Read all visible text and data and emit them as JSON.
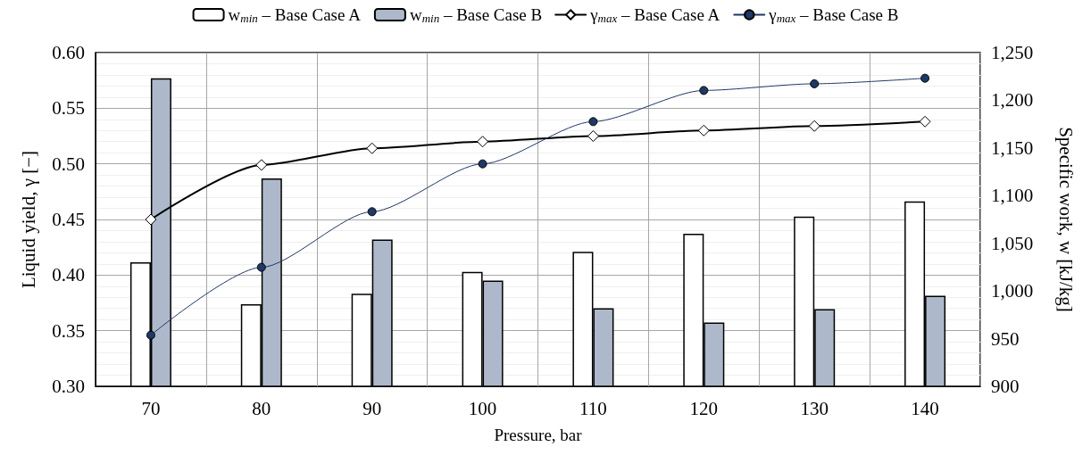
{
  "chart_data": {
    "type": "bar",
    "xlabel": "Pressure, bar",
    "ylabel": "Liquid yield, γ [−]",
    "y2label": "Specific work, w [kJ/kg]",
    "categories": [
      "70",
      "80",
      "90",
      "100",
      "110",
      "120",
      "130",
      "140"
    ],
    "series": [
      {
        "name": "w$_{min}$ – Base Case A",
        "axis": "y2",
        "color": "#ffffff",
        "values": [
          1030,
          986,
          997,
          1020,
          1041,
          1060,
          1078,
          1094
        ]
      },
      {
        "name": "w$_{min}$ – Base Case B",
        "axis": "y2",
        "color": "#adb9ca",
        "values": [
          1223,
          1118,
          1054,
          1011,
          982,
          967,
          981,
          995
        ]
      },
      {
        "name": "γ$_{max}$ – Base Case A",
        "type": "line",
        "marker": "diamond",
        "color": "#000000",
        "values": [
          0.45,
          0.499,
          0.514,
          0.52,
          0.525,
          0.53,
          0.534,
          0.538
        ]
      },
      {
        "name": "γ$_{max}$ – Base Case B",
        "type": "line",
        "marker": "circle",
        "color": "#1f3864",
        "values": [
          0.346,
          0.407,
          0.457,
          0.5,
          0.538,
          0.566,
          0.572,
          0.577
        ]
      }
    ],
    "ylim": [
      0.3,
      0.6
    ],
    "yticks": [
      {
        "value": 0.3,
        "label": "0.30"
      },
      0.35,
      {
        "value": 0.4,
        "label": "0.40"
      },
      0.45,
      {
        "value": 0.5,
        "label": "0.50"
      },
      0.55,
      {
        "value": 0.6,
        "label": "0.60"
      }
    ],
    "y2lim": [
      900,
      1250
    ],
    "y2ticks": [
      900,
      950,
      {
        "value": 1000,
        "label": "1,000"
      },
      {
        "value": 1050,
        "label": "1,050"
      },
      {
        "value": 1100,
        "label": "1,100"
      },
      {
        "value": 1150,
        "label": "1,150"
      },
      {
        "value": 1200,
        "label": "1,200"
      },
      {
        "value": 1250,
        "label": "1,250"
      }
    ],
    "grid": true,
    "legend": "top",
    "line_style": "solid"
  }
}
